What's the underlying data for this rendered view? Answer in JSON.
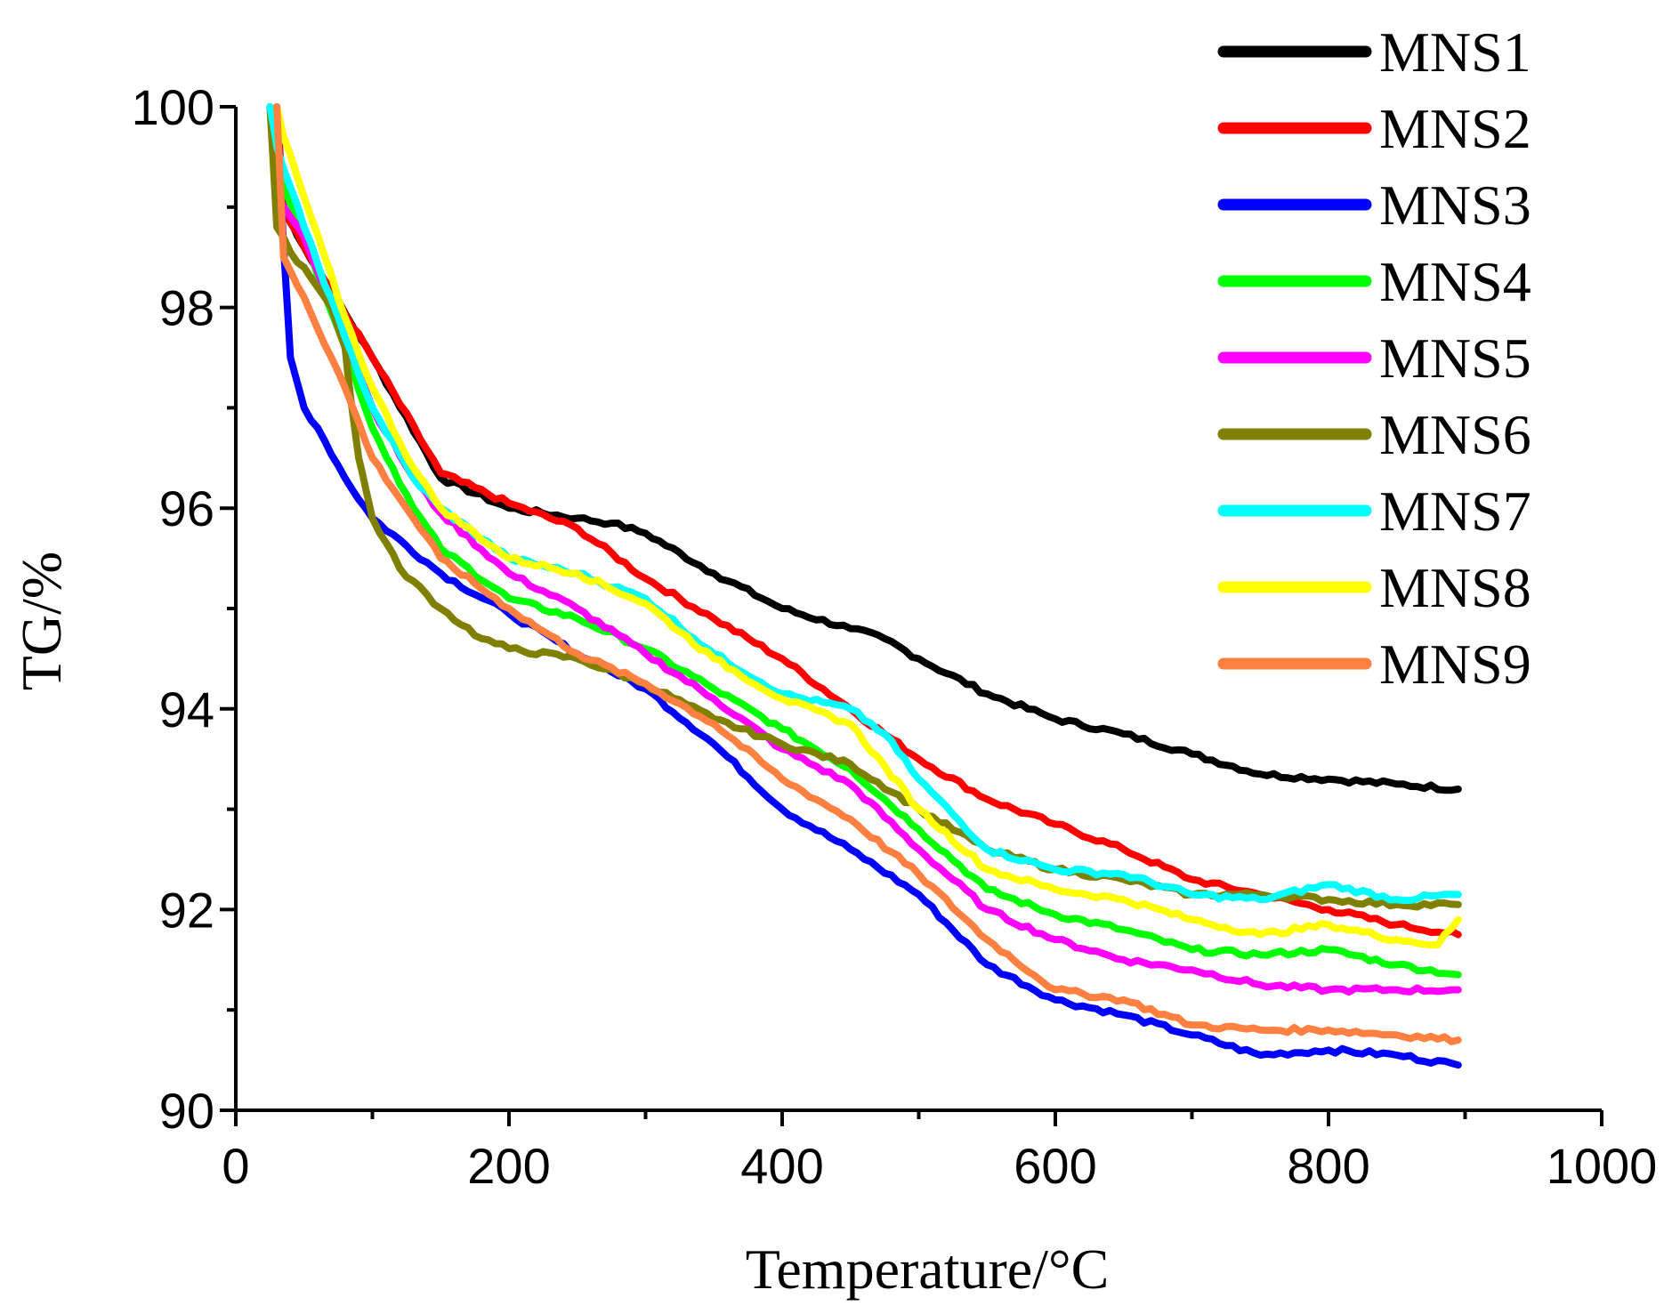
{
  "chart_data": {
    "type": "line",
    "title": "",
    "xlabel": "Temperature/°C",
    "ylabel": "TG/%",
    "xlim": [
      0,
      1000
    ],
    "ylim": [
      90,
      100
    ],
    "x_ticks": [
      0,
      200,
      400,
      600,
      800,
      1000
    ],
    "x_tick_labels": [
      "0",
      "200",
      "400",
      "600",
      "800",
      "1000"
    ],
    "y_ticks": [
      90,
      92,
      94,
      96,
      98,
      100
    ],
    "y_tick_labels": [
      "90",
      "92",
      "94",
      "96",
      "98",
      "100"
    ],
    "grid": false,
    "legend_position": "top-right",
    "series": [
      {
        "name": "MNS1",
        "color": "#000000",
        "x": [
          30,
          35,
          50,
          100,
          150,
          200,
          250,
          275,
          300,
          350,
          400,
          450,
          475,
          500,
          550,
          600,
          650,
          700,
          750,
          800,
          850,
          895
        ],
        "y": [
          100,
          99.0,
          98.6,
          97.5,
          96.3,
          96.0,
          95.9,
          95.85,
          95.75,
          95.35,
          95.0,
          94.8,
          94.7,
          94.5,
          94.15,
          93.9,
          93.75,
          93.55,
          93.35,
          93.3,
          93.25,
          93.2
        ]
      },
      {
        "name": "MNS2",
        "color": "#ff0000",
        "x": [
          30,
          35,
          50,
          100,
          150,
          200,
          250,
          300,
          350,
          400,
          450,
          500,
          550,
          600,
          650,
          700,
          750,
          800,
          850,
          895
        ],
        "y": [
          100,
          99.0,
          98.6,
          97.5,
          96.35,
          96.05,
          95.8,
          95.3,
          94.9,
          94.5,
          94.0,
          93.5,
          93.1,
          92.85,
          92.6,
          92.3,
          92.15,
          92.0,
          91.85,
          91.75
        ]
      },
      {
        "name": "MNS3",
        "color": "#0000ff",
        "x": [
          30,
          35,
          40,
          50,
          60,
          80,
          100,
          150,
          200,
          250,
          300,
          350,
          400,
          450,
          500,
          550,
          600,
          650,
          700,
          750,
          800,
          850,
          895
        ],
        "y": [
          100,
          98.6,
          97.5,
          97.0,
          96.8,
          96.3,
          95.9,
          95.35,
          94.95,
          94.55,
          94.2,
          93.65,
          93.0,
          92.6,
          92.15,
          91.45,
          91.1,
          90.95,
          90.75,
          90.55,
          90.6,
          90.55,
          90.45
        ]
      },
      {
        "name": "MNS4",
        "color": "#00ff00",
        "x": [
          25,
          30,
          50,
          80,
          100,
          130,
          150,
          200,
          250,
          300,
          350,
          400,
          450,
          500,
          550,
          600,
          650,
          700,
          750,
          800,
          850,
          895
        ],
        "y": [
          100,
          99.4,
          98.7,
          97.6,
          96.8,
          96.0,
          95.6,
          95.1,
          94.9,
          94.6,
          94.2,
          93.8,
          93.4,
          92.8,
          92.2,
          91.95,
          91.8,
          91.6,
          91.55,
          91.6,
          91.45,
          91.35
        ]
      },
      {
        "name": "MNS5",
        "color": "#ff00ff",
        "x": [
          25,
          30,
          50,
          80,
          100,
          130,
          150,
          200,
          250,
          300,
          350,
          400,
          450,
          500,
          550,
          600,
          650,
          700,
          750,
          800,
          850,
          895
        ],
        "y": [
          100,
          99.1,
          98.7,
          97.7,
          97.0,
          96.3,
          95.95,
          95.35,
          95.0,
          94.55,
          94.1,
          93.6,
          93.25,
          92.6,
          92.0,
          91.7,
          91.5,
          91.4,
          91.25,
          91.2,
          91.2,
          91.2
        ]
      },
      {
        "name": "MNS6",
        "color": "#808000",
        "x": [
          25,
          30,
          40,
          50,
          60,
          70,
          80,
          85,
          90,
          95,
          100,
          120,
          150,
          180,
          200,
          250,
          300,
          350,
          400,
          450,
          500,
          550,
          600,
          650,
          700,
          750,
          800,
          850,
          895
        ],
        "y": [
          100,
          98.8,
          98.55,
          98.4,
          98.2,
          98.0,
          97.6,
          97.0,
          96.5,
          96.2,
          95.9,
          95.4,
          95.0,
          94.7,
          94.6,
          94.5,
          94.25,
          93.9,
          93.65,
          93.45,
          93.0,
          92.6,
          92.4,
          92.3,
          92.15,
          92.15,
          92.1,
          92.05,
          92.05
        ]
      },
      {
        "name": "MNS7",
        "color": "#00ffff",
        "x": [
          25,
          30,
          50,
          80,
          100,
          130,
          150,
          200,
          250,
          300,
          350,
          400,
          450,
          475,
          500,
          550,
          600,
          650,
          700,
          750,
          800,
          850,
          895
        ],
        "y": [
          100,
          99.6,
          98.8,
          97.7,
          97.0,
          96.3,
          96.0,
          95.5,
          95.35,
          95.1,
          94.55,
          94.15,
          94.0,
          93.75,
          93.3,
          92.6,
          92.4,
          92.35,
          92.15,
          92.1,
          92.25,
          92.1,
          92.15
        ]
      },
      {
        "name": "MNS8",
        "color": "#ffff00",
        "x": [
          30,
          35,
          50,
          80,
          100,
          130,
          150,
          200,
          250,
          300,
          350,
          400,
          450,
          500,
          550,
          600,
          650,
          700,
          750,
          800,
          850,
          880,
          895
        ],
        "y": [
          100,
          99.7,
          99.1,
          97.9,
          97.2,
          96.4,
          96.0,
          95.5,
          95.35,
          95.05,
          94.5,
          94.1,
          93.85,
          93.0,
          92.4,
          92.2,
          92.1,
          91.9,
          91.75,
          91.85,
          91.7,
          91.65,
          91.9
        ]
      },
      {
        "name": "MNS9",
        "color": "#ff8040",
        "x": [
          30,
          35,
          50,
          80,
          100,
          130,
          150,
          200,
          250,
          300,
          350,
          400,
          450,
          500,
          550,
          600,
          650,
          700,
          750,
          800,
          850,
          895
        ],
        "y": [
          100,
          98.5,
          98.1,
          97.2,
          96.5,
          95.9,
          95.5,
          95.0,
          94.55,
          94.25,
          93.85,
          93.3,
          92.9,
          92.35,
          91.7,
          91.2,
          91.1,
          90.85,
          90.8,
          90.8,
          90.75,
          90.7
        ]
      }
    ]
  }
}
